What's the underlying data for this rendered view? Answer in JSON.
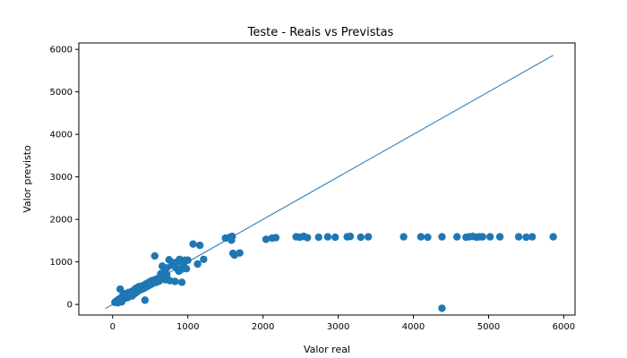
{
  "chart_data": {
    "type": "scatter",
    "title": "Teste - Reais vs Previstas",
    "xlabel": "Valor real",
    "ylabel": "Valor previsto",
    "xlim": [
      -450,
      6150
    ],
    "ylim": [
      -250,
      6150
    ],
    "xticks": [
      0,
      1000,
      2000,
      3000,
      4000,
      5000,
      6000
    ],
    "yticks": [
      0,
      1000,
      2000,
      3000,
      4000,
      5000,
      6000
    ],
    "grid": false,
    "colors": {
      "points": "#1f77b4",
      "line": "#1f77b4"
    },
    "reference_line": {
      "x": [
        -100,
        5860
      ],
      "y": [
        -100,
        5860
      ]
    },
    "points": [
      [
        30,
        50
      ],
      [
        50,
        80
      ],
      [
        70,
        40
      ],
      [
        80,
        120
      ],
      [
        100,
        90
      ],
      [
        110,
        150
      ],
      [
        120,
        60
      ],
      [
        130,
        200
      ],
      [
        150,
        130
      ],
      [
        160,
        250
      ],
      [
        170,
        180
      ],
      [
        190,
        210
      ],
      [
        200,
        160
      ],
      [
        210,
        280
      ],
      [
        230,
        230
      ],
      [
        250,
        300
      ],
      [
        260,
        200
      ],
      [
        280,
        330
      ],
      [
        300,
        260
      ],
      [
        310,
        380
      ],
      [
        330,
        300
      ],
      [
        350,
        420
      ],
      [
        380,
        350
      ],
      [
        400,
        440
      ],
      [
        420,
        380
      ],
      [
        440,
        480
      ],
      [
        460,
        420
      ],
      [
        480,
        520
      ],
      [
        500,
        460
      ],
      [
        520,
        560
      ],
      [
        540,
        500
      ],
      [
        560,
        580
      ],
      [
        580,
        520
      ],
      [
        600,
        610
      ],
      [
        620,
        550
      ],
      [
        650,
        600
      ],
      [
        680,
        640
      ],
      [
        700,
        580
      ],
      [
        720,
        700
      ],
      [
        100,
        360
      ],
      [
        430,
        100
      ],
      [
        560,
        1140
      ],
      [
        640,
        720
      ],
      [
        660,
        900
      ],
      [
        690,
        810
      ],
      [
        720,
        860
      ],
      [
        750,
        1050
      ],
      [
        760,
        560
      ],
      [
        790,
        920
      ],
      [
        810,
        980
      ],
      [
        830,
        540
      ],
      [
        850,
        850
      ],
      [
        860,
        1000
      ],
      [
        880,
        780
      ],
      [
        890,
        1060
      ],
      [
        910,
        820
      ],
      [
        920,
        520
      ],
      [
        940,
        950
      ],
      [
        960,
        1040
      ],
      [
        980,
        840
      ],
      [
        1000,
        1040
      ],
      [
        1070,
        1420
      ],
      [
        1130,
        950
      ],
      [
        1160,
        1390
      ],
      [
        1210,
        1060
      ],
      [
        1500,
        1560
      ],
      [
        1560,
        1580
      ],
      [
        1580,
        1510
      ],
      [
        1590,
        1600
      ],
      [
        1600,
        1200
      ],
      [
        1620,
        1160
      ],
      [
        1690,
        1210
      ],
      [
        2040,
        1530
      ],
      [
        2120,
        1560
      ],
      [
        2170,
        1570
      ],
      [
        2440,
        1590
      ],
      [
        2490,
        1580
      ],
      [
        2540,
        1600
      ],
      [
        2590,
        1570
      ],
      [
        2740,
        1580
      ],
      [
        2860,
        1590
      ],
      [
        2960,
        1580
      ],
      [
        3120,
        1590
      ],
      [
        3160,
        1600
      ],
      [
        3300,
        1580
      ],
      [
        3400,
        1590
      ],
      [
        3870,
        1590
      ],
      [
        4100,
        1590
      ],
      [
        4190,
        1580
      ],
      [
        4380,
        1590
      ],
      [
        4380,
        -90
      ],
      [
        4580,
        1590
      ],
      [
        4700,
        1580
      ],
      [
        4740,
        1590
      ],
      [
        4790,
        1600
      ],
      [
        4840,
        1580
      ],
      [
        4880,
        1590
      ],
      [
        4920,
        1590
      ],
      [
        5020,
        1590
      ],
      [
        5150,
        1590
      ],
      [
        5400,
        1590
      ],
      [
        5500,
        1580
      ],
      [
        5580,
        1590
      ],
      [
        5860,
        1590
      ]
    ]
  }
}
